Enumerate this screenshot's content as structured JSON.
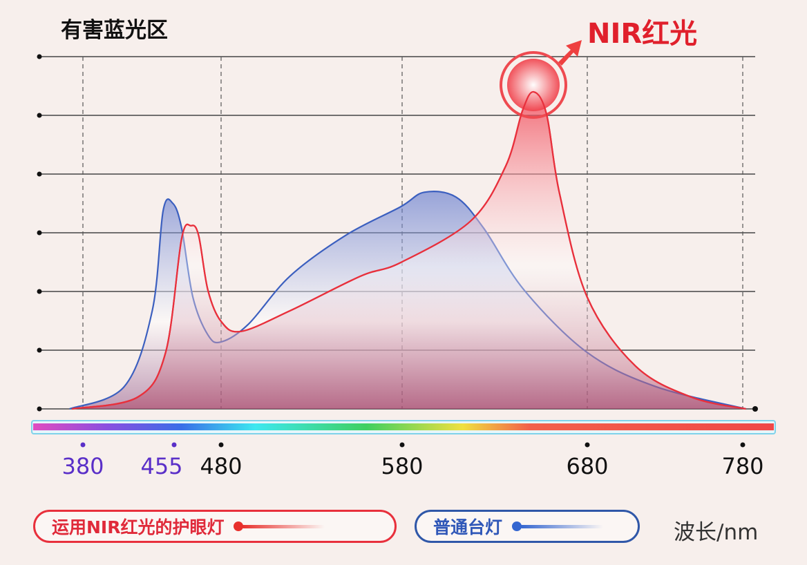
{
  "chart_data": {
    "type": "area",
    "title": "有害蓝光区",
    "annotation": "NIR红光",
    "xlabel": "波长/nm",
    "ylabel": "",
    "x_ticks": [
      380,
      455,
      480,
      580,
      680,
      780
    ],
    "x_tick_colors": [
      "#5a2fc8",
      "#5a2fc8",
      "#111111",
      "#111111",
      "#111111",
      "#111111"
    ],
    "y_gridlines": 7,
    "grid": true,
    "legend_placement": "bottom",
    "series": [
      {
        "name": "普通台灯",
        "color": "#3b5fbf",
        "points": [
          [
            369,
            0
          ],
          [
            414,
            0.38
          ],
          [
            437,
            1.67
          ],
          [
            446,
            3.38
          ],
          [
            454,
            3.5
          ],
          [
            459,
            3.08
          ],
          [
            465,
            1.9
          ],
          [
            473,
            1.26
          ],
          [
            480,
            1.14
          ],
          [
            495,
            1.44
          ],
          [
            518,
            2.26
          ],
          [
            549,
            2.96
          ],
          [
            579,
            3.44
          ],
          [
            592,
            3.69
          ],
          [
            609,
            3.61
          ],
          [
            624,
            3.08
          ],
          [
            646,
            2.02
          ],
          [
            680,
            0.96
          ],
          [
            724,
            0.38
          ],
          [
            782,
            0
          ]
        ]
      },
      {
        "name": "运用NIR红光的护眼灯",
        "color": "#e8303c",
        "points": [
          [
            371,
            0
          ],
          [
            425,
            0.2
          ],
          [
            448,
            0.96
          ],
          [
            459,
            2.9
          ],
          [
            464,
            3.12
          ],
          [
            468,
            2.96
          ],
          [
            473,
            2.02
          ],
          [
            480,
            1.49
          ],
          [
            491,
            1.32
          ],
          [
            518,
            1.67
          ],
          [
            557,
            2.26
          ],
          [
            579,
            2.49
          ],
          [
            617,
            3.2
          ],
          [
            636,
            4.14
          ],
          [
            645,
            5.08
          ],
          [
            651,
            5.4
          ],
          [
            658,
            5.02
          ],
          [
            665,
            3.67
          ],
          [
            680,
            1.9
          ],
          [
            711,
            0.73
          ],
          [
            747,
            0.2
          ],
          [
            782,
            0
          ]
        ]
      }
    ]
  }
}
